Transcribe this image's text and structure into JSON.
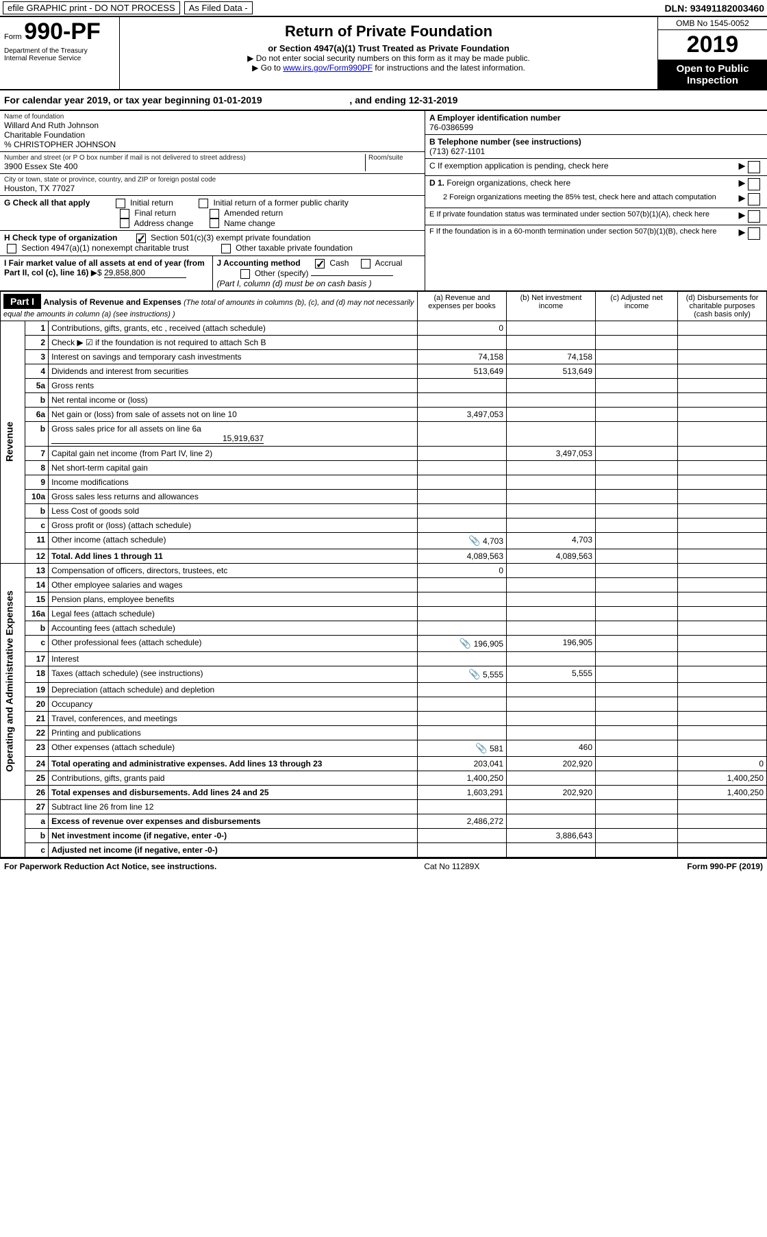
{
  "topbar": {
    "efile": "efile GRAPHIC print - DO NOT PROCESS",
    "asfiled": "As Filed Data -",
    "dln_label": "DLN:",
    "dln": "93491182003460"
  },
  "header": {
    "form_word": "Form",
    "form_no": "990-PF",
    "dept": "Department of the Treasury\nInternal Revenue Service",
    "title": "Return of Private Foundation",
    "subtitle": "or Section 4947(a)(1) Trust Treated as Private Foundation",
    "note1": "▶ Do not enter social security numbers on this form as it may be made public.",
    "note2_pre": "▶ Go to ",
    "note2_link": "www.irs.gov/Form990PF",
    "note2_post": " for instructions and the latest information.",
    "omb": "OMB No 1545-0052",
    "year": "2019",
    "open": "Open to Public\nInspection"
  },
  "cal": {
    "text_a": "For calendar year 2019, or tax year beginning ",
    "begin": "01-01-2019",
    "text_b": ", and ending ",
    "end": "12-31-2019"
  },
  "info": {
    "name_label": "Name of foundation",
    "name1": "Willard And Ruth Johnson",
    "name2": "Charitable Foundation",
    "name3": "% CHRISTOPHER JOHNSON",
    "addr_label": "Number and street (or P O  box number if mail is not delivered to street address)",
    "room_label": "Room/suite",
    "addr": "3900 Essex Ste 400",
    "city_label": "City or town, state or province, country, and ZIP or foreign postal code",
    "city": "Houston, TX  77027",
    "ein_label": "A Employer identification number",
    "ein": "76-0386599",
    "phone_label": "B Telephone number (see instructions)",
    "phone": "(713) 627-1101",
    "c_label": "C If exemption application is pending, check here",
    "d1": "D 1. Foreign organizations, check here",
    "d2": "2 Foreign organizations meeting the 85% test, check here and attach computation",
    "e_label": "E  If private foundation status was terminated under section 507(b)(1)(A), check here",
    "f_label": "F  If the foundation is in a 60-month termination under section 507(b)(1)(B), check here"
  },
  "g": {
    "label": "G Check all that apply",
    "initial": "Initial return",
    "initial_former": "Initial return of a former public charity",
    "final": "Final return",
    "amended": "Amended return",
    "addrchg": "Address change",
    "namechg": "Name change"
  },
  "h": {
    "label": "H Check type of organization",
    "s501": "Section 501(c)(3) exempt private foundation",
    "s4947": "Section 4947(a)(1) nonexempt charitable trust",
    "other": "Other taxable private foundation"
  },
  "i": {
    "label": "I Fair market value of all assets at end of year (from Part II, col  (c), line 16)",
    "val_prefix": "▶$ ",
    "val": "29,858,800"
  },
  "j": {
    "label": "J Accounting method",
    "cash": "Cash",
    "accrual": "Accrual",
    "other": "Other (specify)",
    "note": "(Part I, column (d) must be on cash basis )"
  },
  "part1": {
    "label": "Part I",
    "title": "Analysis of Revenue and Expenses",
    "title_note": "(The total of amounts in columns (b), (c), and (d) may not necessarily equal the amounts in column (a) (see instructions) )",
    "col_a": "(a)   Revenue and expenses per books",
    "col_b": "(b)  Net investment income",
    "col_c": "(c)  Adjusted net income",
    "col_d": "(d)  Disbursements for charitable purposes (cash basis only)",
    "revenue_label": "Revenue",
    "expenses_label": "Operating and Administrative Expenses"
  },
  "lines": {
    "l1": {
      "n": "1",
      "t": "Contributions, gifts, grants, etc , received (attach schedule)",
      "a": "0"
    },
    "l2": {
      "n": "2",
      "t": "Check ▶ ☑ if the foundation is not required to attach Sch  B"
    },
    "l3": {
      "n": "3",
      "t": "Interest on savings and temporary cash investments",
      "a": "74,158",
      "b": "74,158"
    },
    "l4": {
      "n": "4",
      "t": "Dividends and interest from securities",
      "a": "513,649",
      "b": "513,649"
    },
    "l5a": {
      "n": "5a",
      "t": "Gross rents"
    },
    "l5b": {
      "n": "b",
      "t": "Net rental income or (loss)"
    },
    "l6a": {
      "n": "6a",
      "t": "Net gain or (loss) from sale of assets not on line 10",
      "a": "3,497,053"
    },
    "l6b": {
      "n": "b",
      "t": "Gross sales price for all assets on line 6a",
      "u": "15,919,637"
    },
    "l7": {
      "n": "7",
      "t": "Capital gain net income (from Part IV, line 2)",
      "b": "3,497,053"
    },
    "l8": {
      "n": "8",
      "t": "Net short-term capital gain"
    },
    "l9": {
      "n": "9",
      "t": "Income modifications"
    },
    "l10a": {
      "n": "10a",
      "t": "Gross sales less returns and allowances"
    },
    "l10b": {
      "n": "b",
      "t": "Less  Cost of goods sold"
    },
    "l10c": {
      "n": "c",
      "t": "Gross profit or (loss) (attach schedule)"
    },
    "l11": {
      "n": "11",
      "t": "Other income (attach schedule)",
      "a": "4,703",
      "b": "4,703",
      "icon": true
    },
    "l12": {
      "n": "12",
      "t": "Total. Add lines 1 through 11",
      "a": "4,089,563",
      "b": "4,089,563",
      "bold": true
    },
    "l13": {
      "n": "13",
      "t": "Compensation of officers, directors, trustees, etc",
      "a": "0"
    },
    "l14": {
      "n": "14",
      "t": "Other employee salaries and wages"
    },
    "l15": {
      "n": "15",
      "t": "Pension plans, employee benefits"
    },
    "l16a": {
      "n": "16a",
      "t": "Legal fees (attach schedule)"
    },
    "l16b": {
      "n": "b",
      "t": "Accounting fees (attach schedule)"
    },
    "l16c": {
      "n": "c",
      "t": "Other professional fees (attach schedule)",
      "a": "196,905",
      "b": "196,905",
      "icon": true
    },
    "l17": {
      "n": "17",
      "t": "Interest"
    },
    "l18": {
      "n": "18",
      "t": "Taxes (attach schedule) (see instructions)",
      "a": "5,555",
      "b": "5,555",
      "icon": true
    },
    "l19": {
      "n": "19",
      "t": "Depreciation (attach schedule) and depletion"
    },
    "l20": {
      "n": "20",
      "t": "Occupancy"
    },
    "l21": {
      "n": "21",
      "t": "Travel, conferences, and meetings"
    },
    "l22": {
      "n": "22",
      "t": "Printing and publications"
    },
    "l23": {
      "n": "23",
      "t": "Other expenses (attach schedule)",
      "a": "581",
      "b": "460",
      "icon": true
    },
    "l24": {
      "n": "24",
      "t": "Total operating and administrative expenses. Add lines 13 through 23",
      "a": "203,041",
      "b": "202,920",
      "d": "0",
      "bold": true
    },
    "l25": {
      "n": "25",
      "t": "Contributions, gifts, grants paid",
      "a": "1,400,250",
      "d": "1,400,250"
    },
    "l26": {
      "n": "26",
      "t": "Total expenses and disbursements. Add lines 24 and 25",
      "a": "1,603,291",
      "b": "202,920",
      "d": "1,400,250",
      "bold": true
    },
    "l27": {
      "n": "27",
      "t": "Subtract line 26 from line 12"
    },
    "l27a": {
      "n": "a",
      "t": "Excess of revenue over expenses and disbursements",
      "a": "2,486,272",
      "bold": true
    },
    "l27b": {
      "n": "b",
      "t": "Net investment income (if negative, enter -0-)",
      "b": "3,886,643",
      "bold": true
    },
    "l27c": {
      "n": "c",
      "t": "Adjusted net income (if negative, enter -0-)",
      "bold": true
    }
  },
  "footer": {
    "left": "For Paperwork Reduction Act Notice, see instructions.",
    "mid": "Cat No  11289X",
    "right": "Form 990-PF (2019)"
  },
  "style": {
    "col_widths": {
      "lineno": 34,
      "a": 130,
      "b": 130,
      "c": 120,
      "d": 130
    }
  }
}
